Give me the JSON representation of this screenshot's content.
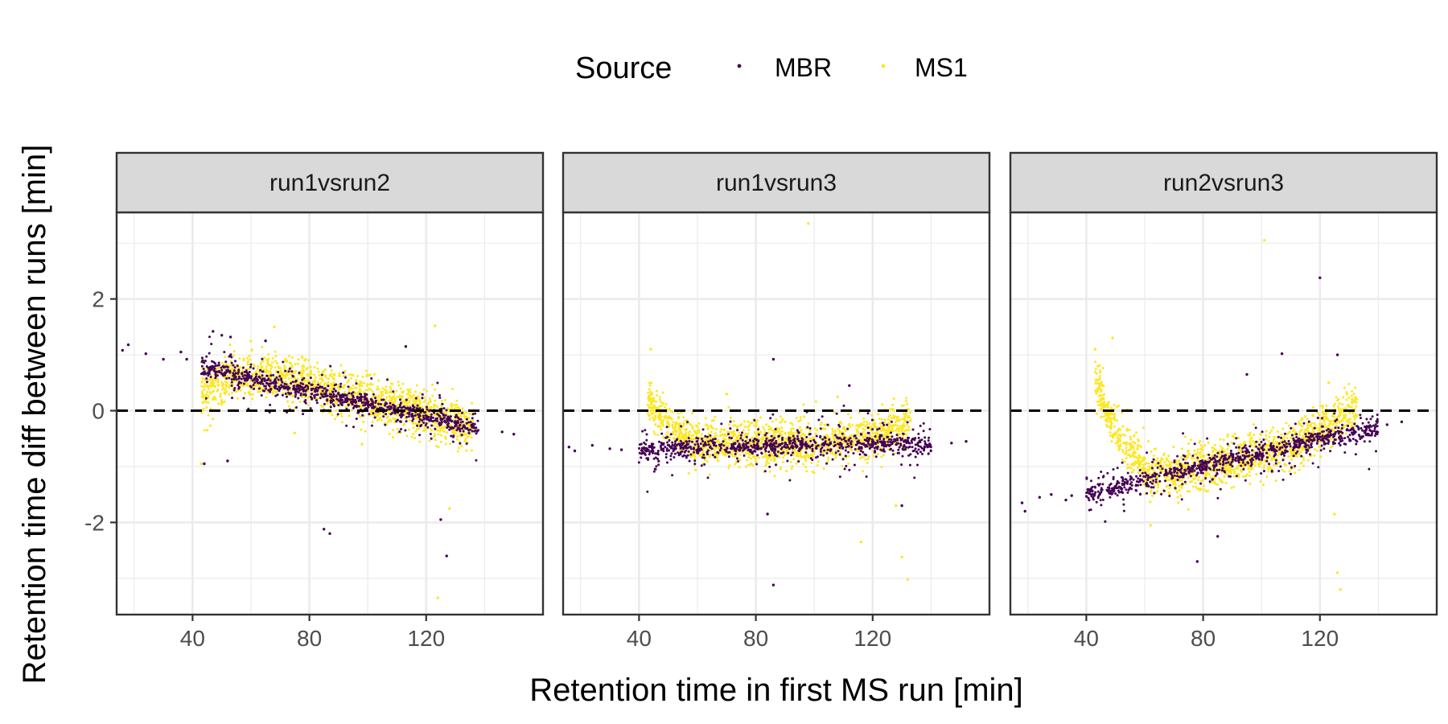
{
  "chart_data": {
    "type": "scatter",
    "xlabel": "Retention time in first MS run [min]",
    "ylabel": "Retention time diff between runs [min]",
    "xlim": [
      14,
      160
    ],
    "ylim": [
      -3.65,
      3.55
    ],
    "x_ticks": [
      40,
      80,
      120
    ],
    "y_ticks": [
      -2,
      0,
      2
    ],
    "reference_line": {
      "y": 0,
      "style": "dashed"
    },
    "grid": true,
    "legend": {
      "title": "Source",
      "position": "top",
      "entries": [
        {
          "name": "MBR",
          "color": "#440154"
        },
        {
          "name": "MS1",
          "color": "#FDE725"
        }
      ]
    },
    "panels": [
      {
        "title": "run1vsrun2",
        "series": [
          {
            "name": "MBR",
            "trend": [
              [
                43,
                0.78
              ],
              [
                60,
                0.58
              ],
              [
                80,
                0.35
              ],
              [
                100,
                0.12
              ],
              [
                120,
                -0.1
              ],
              [
                138,
                -0.32
              ]
            ],
            "outliers": [
              [
                16,
                1.08
              ],
              [
                18,
                1.18
              ],
              [
                24,
                1.02
              ],
              [
                30,
                0.92
              ],
              [
                36,
                1.05
              ],
              [
                38,
                0.92
              ],
              [
                47,
                1.42
              ],
              [
                50,
                1.35
              ],
              [
                53,
                1.32
              ],
              [
                65,
                1.25
              ],
              [
                85,
                -2.12
              ],
              [
                87,
                -2.2
              ],
              [
                113,
                1.15
              ],
              [
                125,
                -1.95
              ],
              [
                127,
                -2.6
              ],
              [
                150,
                -0.42
              ],
              [
                44,
                -0.95
              ],
              [
                52,
                -0.9
              ],
              [
                146,
                -0.38
              ]
            ]
          },
          {
            "name": "MS1",
            "trend": [
              [
                43,
                0.32
              ],
              [
                55,
                0.62
              ],
              [
                70,
                0.6
              ],
              [
                90,
                0.32
              ],
              [
                110,
                0.08
              ],
              [
                130,
                -0.2
              ],
              [
                136,
                -0.3
              ]
            ],
            "outliers": [
              [
                43,
                -0.95
              ],
              [
                68,
                1.5
              ],
              [
                123,
                1.52
              ],
              [
                124,
                -3.35
              ],
              [
                128,
                -1.75
              ],
              [
                45,
                -0.35
              ],
              [
                75,
                -0.4
              ],
              [
                98,
                -0.6
              ]
            ]
          }
        ]
      },
      {
        "title": "run1vsrun3",
        "series": [
          {
            "name": "MBR",
            "trend": [
              [
                40,
                -0.7
              ],
              [
                60,
                -0.66
              ],
              [
                80,
                -0.63
              ],
              [
                100,
                -0.61
              ],
              [
                120,
                -0.6
              ],
              [
                140,
                -0.58
              ]
            ],
            "outliers": [
              [
                16,
                -0.65
              ],
              [
                18,
                -0.72
              ],
              [
                24,
                -0.62
              ],
              [
                30,
                -0.68
              ],
              [
                34,
                -0.7
              ],
              [
                86,
                0.92
              ],
              [
                84,
                -1.85
              ],
              [
                86,
                -3.12
              ],
              [
                112,
                0.45
              ],
              [
                130,
                -1.7
              ],
              [
                147,
                -0.58
              ],
              [
                152,
                -0.55
              ]
            ]
          },
          {
            "name": "MS1",
            "trend": [
              [
                43,
                0.2
              ],
              [
                46,
                0.0
              ],
              [
                52,
                -0.35
              ],
              [
                60,
                -0.58
              ],
              [
                80,
                -0.62
              ],
              [
                100,
                -0.6
              ],
              [
                120,
                -0.45
              ],
              [
                133,
                -0.2
              ]
            ],
            "outliers": [
              [
                44,
                1.1
              ],
              [
                98,
                3.35
              ],
              [
                116,
                -2.35
              ],
              [
                130,
                -2.62
              ],
              [
                132,
                -3.02
              ],
              [
                128,
                -1.7
              ],
              [
                70,
                0.3
              ],
              [
                108,
                0.25
              ]
            ]
          }
        ]
      },
      {
        "title": "run2vsrun3",
        "series": [
          {
            "name": "MBR",
            "trend": [
              [
                40,
                -1.5
              ],
              [
                60,
                -1.25
              ],
              [
                80,
                -1.0
              ],
              [
                100,
                -0.75
              ],
              [
                120,
                -0.5
              ],
              [
                140,
                -0.3
              ]
            ],
            "outliers": [
              [
                18,
                -1.65
              ],
              [
                19,
                -1.8
              ],
              [
                24,
                -1.55
              ],
              [
                28,
                -1.5
              ],
              [
                33,
                -1.6
              ],
              [
                35,
                -1.52
              ],
              [
                78,
                -2.7
              ],
              [
                85,
                -2.25
              ],
              [
                95,
                0.65
              ],
              [
                107,
                1.02
              ],
              [
                120,
                2.38
              ],
              [
                126,
                1.0
              ],
              [
                143,
                -0.25
              ],
              [
                148,
                -0.2
              ]
            ]
          },
          {
            "name": "MS1",
            "trend": [
              [
                43,
                0.55
              ],
              [
                47,
                0.0
              ],
              [
                52,
                -0.5
              ],
              [
                60,
                -1.05
              ],
              [
                70,
                -1.15
              ],
              [
                90,
                -0.9
              ],
              [
                110,
                -0.65
              ],
              [
                125,
                -0.2
              ],
              [
                133,
                0.05
              ]
            ],
            "outliers": [
              [
                43,
                1.1
              ],
              [
                49,
                1.3
              ],
              [
                101,
                3.05
              ],
              [
                126,
                -2.9
              ],
              [
                127,
                -3.2
              ],
              [
                125,
                -1.85
              ],
              [
                62,
                -2.05
              ],
              [
                115,
                -0.1
              ],
              [
                123,
                0.5
              ]
            ]
          }
        ]
      }
    ]
  }
}
